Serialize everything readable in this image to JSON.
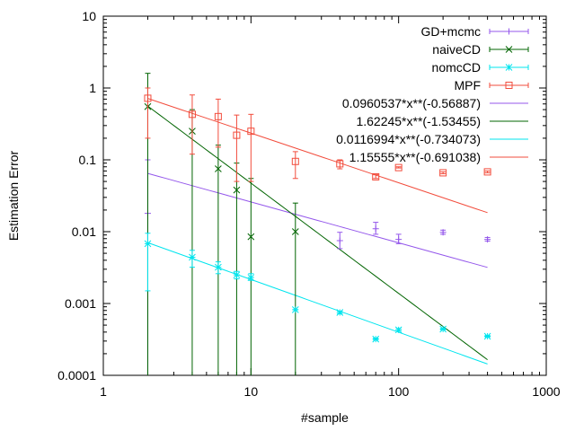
{
  "chart_data": {
    "type": "scatter",
    "title": "",
    "xlabel": "#sample",
    "ylabel": "Estimation Error",
    "xscale": "log",
    "yscale": "log",
    "xlim": [
      1,
      1000
    ],
    "ylim": [
      0.0001,
      10
    ],
    "x_ticks": [
      1,
      10,
      100,
      1000
    ],
    "x_tick_labels": [
      "1",
      "10",
      "100",
      "1000"
    ],
    "y_ticks": [
      0.0001,
      0.001,
      0.01,
      0.1,
      1,
      10
    ],
    "y_tick_labels": [
      "0.0001",
      "0.001",
      "0.01",
      "0.1",
      "1",
      "10"
    ],
    "grid": false,
    "legend_position": "top-right",
    "series": [
      {
        "name": "GD+mcmc",
        "color": "#9457eb",
        "marker": "plus",
        "x": [
          2,
          40,
          70,
          100,
          200,
          400
        ],
        "y": [
          0.018,
          0.0075,
          0.011,
          0.0078,
          0.0098,
          0.0078
        ],
        "err_low": [
          0.0,
          0.0058,
          0.0092,
          0.0068,
          0.0092,
          0.0074
        ],
        "err_high": [
          0.1,
          0.0098,
          0.0135,
          0.0092,
          0.0105,
          0.0083
        ]
      },
      {
        "name": "naiveCD",
        "color": "#006400",
        "marker": "cross",
        "x": [
          2,
          4,
          6,
          8,
          10,
          20
        ],
        "y": [
          0.55,
          0.25,
          0.075,
          0.038,
          0.0085,
          0.01
        ],
        "err_low": [
          0.0001,
          0.0001,
          0.0001,
          0.0001,
          0.0001,
          0.0001
        ],
        "err_high": [
          1.6,
          0.5,
          0.16,
          0.09,
          0.055,
          0.025
        ]
      },
      {
        "name": "nomcCD",
        "color": "#00e5ee",
        "marker": "star",
        "x": [
          2,
          4,
          6,
          8,
          10,
          20,
          40,
          70,
          100,
          200,
          400
        ],
        "y": [
          0.0068,
          0.0044,
          0.0032,
          0.0025,
          0.0023,
          0.00082,
          0.00075,
          0.00032,
          0.00043,
          0.00044,
          0.00035
        ],
        "err_low": [
          0.0015,
          0.0032,
          0.0026,
          0.0022,
          0.0021,
          0.00082,
          0.00072,
          0.00031,
          0.00041,
          0.00043,
          0.00034
        ],
        "err_high": [
          0.0095,
          0.0055,
          0.0038,
          0.0028,
          0.0026,
          0.00082,
          0.00078,
          0.00033,
          0.00045,
          0.00045,
          0.00036
        ]
      },
      {
        "name": "MPF",
        "color": "#f24c3c",
        "marker": "square",
        "x": [
          2,
          4,
          6,
          8,
          10,
          20,
          40,
          70,
          100,
          200,
          400
        ],
        "y": [
          0.72,
          0.43,
          0.4,
          0.22,
          0.25,
          0.095,
          0.088,
          0.058,
          0.078,
          0.066,
          0.068
        ],
        "err_low": [
          0.2,
          0.12,
          0.15,
          0.05,
          0.05,
          0.055,
          0.075,
          0.055,
          0.077,
          0.064,
          0.066
        ],
        "err_high": [
          1.0,
          0.8,
          0.7,
          0.42,
          0.43,
          0.13,
          0.1,
          0.062,
          0.08,
          0.068,
          0.07
        ]
      }
    ],
    "fits": [
      {
        "name": "0.0960537*x**(-0.56887)",
        "a": 0.0960537,
        "b": -0.56887,
        "color": "#9457eb"
      },
      {
        "name": "1.62245*x**(-1.53455)",
        "a": 1.62245,
        "b": -1.53455,
        "color": "#006400"
      },
      {
        "name": "0.0116994*x**(-0.734073)",
        "a": 0.0116994,
        "b": -0.734073,
        "color": "#00e5ee"
      },
      {
        "name": "1.15555*x**(-0.691038)",
        "a": 1.15555,
        "b": -0.691038,
        "color": "#f24c3c"
      }
    ],
    "fit_x_range": [
      2,
      400
    ]
  }
}
